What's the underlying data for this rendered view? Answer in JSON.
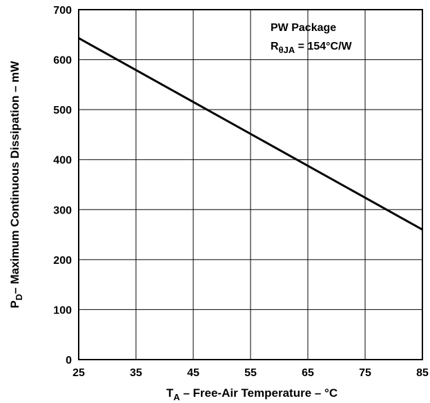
{
  "chart_data": {
    "type": "line",
    "x": [
      25,
      85
    ],
    "series": [
      {
        "values": [
          643,
          260
        ]
      }
    ],
    "xlim": [
      25,
      85
    ],
    "ylim": [
      0,
      700
    ],
    "xticks": [
      "25",
      "35",
      "45",
      "55",
      "65",
      "75",
      "85"
    ],
    "yticks": [
      "0",
      "100",
      "200",
      "300",
      "400",
      "500",
      "600",
      "700"
    ],
    "grid": true,
    "xlabel": {
      "main": "T",
      "sub": "A",
      "rest": " – Free-Air Temperature – °C"
    },
    "ylabel": {
      "main": "P",
      "sub": "D",
      "rest": "– Maximum Continuous Dissipation – mW"
    },
    "annotation": {
      "line1": "PW Package",
      "line2_main": "R",
      "line2_sub": "θJA",
      "line2_rest": " = 154°C/W"
    },
    "colors": {
      "line": "#000000",
      "grid": "#000000",
      "background": "#ffffff"
    }
  }
}
